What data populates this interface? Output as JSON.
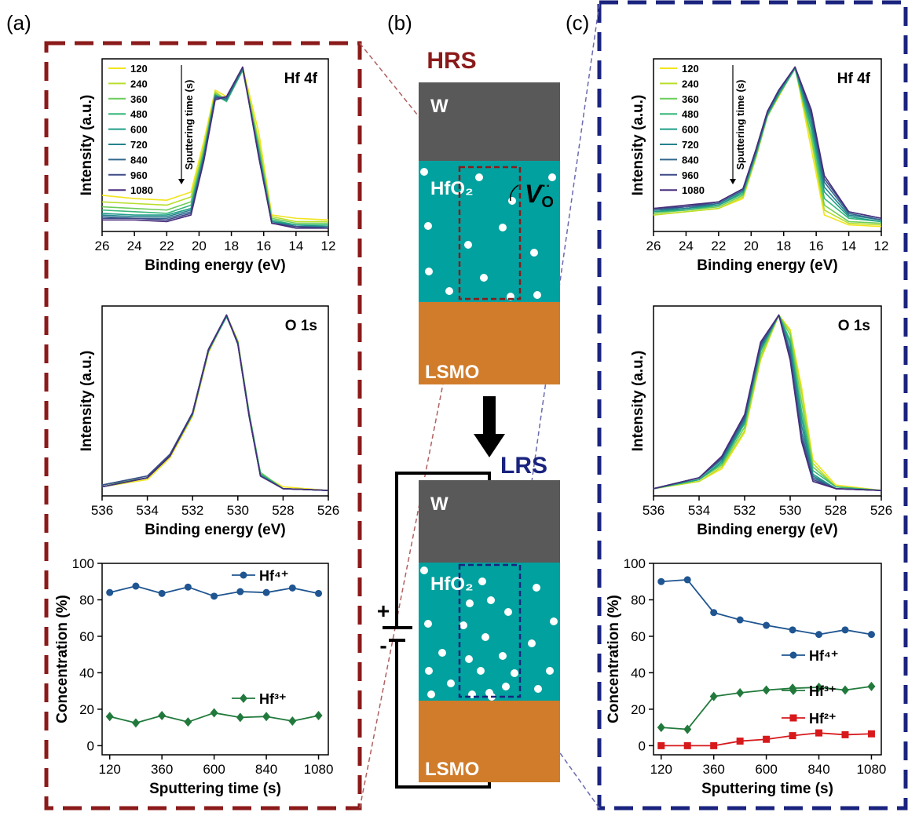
{
  "diagram": {
    "panel_labels": [
      "(a)",
      "(b)",
      "(c)"
    ],
    "hrs": "HRS",
    "lrs": "LRS",
    "layers": [
      "W",
      "HfO₂",
      "LSMO"
    ],
    "vacancy": {
      "symbol": "V",
      "subscript": "O",
      "superscript": "··"
    },
    "plus": "+",
    "minus": "-"
  },
  "chart_data": [
    {
      "type": "line",
      "title": "Hf 4f",
      "xlabel": "Binding energy (eV)",
      "ylabel": "Intensity (a.u.)",
      "legend_title": "Sputtering time (s)",
      "x": [
        26,
        24,
        22,
        20.5,
        19.7,
        19,
        18.3,
        17.3,
        16.3,
        15.5,
        14,
        12
      ],
      "xlim": [
        26,
        12
      ],
      "xticks": [
        26,
        24,
        22,
        20,
        18,
        16,
        14,
        12
      ],
      "ylim": [
        0,
        1.05
      ],
      "series": [
        {
          "name": "120",
          "color": "#f2e41d",
          "values": [
            0.22,
            0.2,
            0.19,
            0.24,
            0.55,
            0.86,
            0.82,
            1.0,
            0.6,
            0.1,
            0.08,
            0.07
          ]
        },
        {
          "name": "240",
          "color": "#b8de29",
          "values": [
            0.18,
            0.17,
            0.16,
            0.21,
            0.52,
            0.85,
            0.8,
            0.99,
            0.55,
            0.09,
            0.06,
            0.06
          ]
        },
        {
          "name": "360",
          "color": "#6ccd5a",
          "values": [
            0.15,
            0.14,
            0.13,
            0.18,
            0.5,
            0.84,
            0.8,
            0.99,
            0.52,
            0.08,
            0.05,
            0.05
          ]
        },
        {
          "name": "480",
          "color": "#35b779",
          "values": [
            0.13,
            0.12,
            0.11,
            0.16,
            0.48,
            0.83,
            0.79,
            0.98,
            0.5,
            0.07,
            0.04,
            0.04
          ]
        },
        {
          "name": "600",
          "color": "#1f9e89",
          "values": [
            0.11,
            0.1,
            0.1,
            0.14,
            0.47,
            0.83,
            0.8,
            0.99,
            0.48,
            0.06,
            0.04,
            0.03
          ]
        },
        {
          "name": "720",
          "color": "#26828e",
          "values": [
            0.1,
            0.09,
            0.09,
            0.13,
            0.46,
            0.82,
            0.8,
            0.99,
            0.47,
            0.06,
            0.03,
            0.03
          ]
        },
        {
          "name": "840",
          "color": "#31688e",
          "values": [
            0.09,
            0.08,
            0.08,
            0.12,
            0.45,
            0.82,
            0.81,
            1.0,
            0.46,
            0.05,
            0.03,
            0.02
          ]
        },
        {
          "name": "960",
          "color": "#3e4a89",
          "values": [
            0.08,
            0.08,
            0.07,
            0.11,
            0.44,
            0.81,
            0.82,
            1.0,
            0.45,
            0.05,
            0.03,
            0.02
          ]
        },
        {
          "name": "1080",
          "color": "#472d7b",
          "values": [
            0.07,
            0.07,
            0.06,
            0.1,
            0.43,
            0.8,
            0.82,
            1.0,
            0.45,
            0.05,
            0.02,
            0.02
          ]
        }
      ]
    },
    {
      "type": "line",
      "title": "O 1s",
      "xlabel": "Binding energy (eV)",
      "ylabel": "Intensity (a.u.)",
      "x": [
        536,
        534,
        533,
        532,
        531.3,
        530.5,
        530,
        529.5,
        529,
        528,
        526
      ],
      "xlim": [
        536,
        526
      ],
      "xticks": [
        536,
        534,
        532,
        530,
        528,
        526
      ],
      "ylim": [
        0,
        1.05
      ],
      "series": [
        {
          "name": "120",
          "color": "#f2e41d",
          "values": [
            0.05,
            0.09,
            0.21,
            0.44,
            0.79,
            1.0,
            0.86,
            0.46,
            0.12,
            0.05,
            0.03
          ]
        },
        {
          "name": "240",
          "color": "#b8de29",
          "values": [
            0.05,
            0.1,
            0.22,
            0.45,
            0.8,
            1.0,
            0.85,
            0.45,
            0.12,
            0.04,
            0.03
          ]
        },
        {
          "name": "360",
          "color": "#6ccd5a",
          "values": [
            0.06,
            0.1,
            0.22,
            0.45,
            0.8,
            0.99,
            0.85,
            0.46,
            0.13,
            0.04,
            0.03
          ]
        },
        {
          "name": "480",
          "color": "#35b779",
          "values": [
            0.05,
            0.1,
            0.23,
            0.46,
            0.81,
            1.0,
            0.84,
            0.44,
            0.12,
            0.04,
            0.03
          ]
        },
        {
          "name": "600",
          "color": "#1f9e89",
          "values": [
            0.06,
            0.11,
            0.23,
            0.46,
            0.81,
            0.99,
            0.85,
            0.45,
            0.12,
            0.04,
            0.03
          ]
        },
        {
          "name": "720",
          "color": "#26828e",
          "values": [
            0.05,
            0.1,
            0.22,
            0.45,
            0.8,
            1.0,
            0.85,
            0.45,
            0.11,
            0.04,
            0.03
          ]
        },
        {
          "name": "840",
          "color": "#31688e",
          "values": [
            0.05,
            0.1,
            0.22,
            0.46,
            0.81,
            1.0,
            0.84,
            0.44,
            0.11,
            0.04,
            0.03
          ]
        },
        {
          "name": "960",
          "color": "#3e4a89",
          "values": [
            0.06,
            0.11,
            0.23,
            0.46,
            0.81,
            1.0,
            0.84,
            0.44,
            0.11,
            0.04,
            0.03
          ]
        },
        {
          "name": "1080",
          "color": "#472d7b",
          "values": [
            0.05,
            0.1,
            0.22,
            0.46,
            0.81,
            1.0,
            0.84,
            0.44,
            0.11,
            0.04,
            0.03
          ]
        }
      ]
    },
    {
      "type": "line",
      "xlabel": "Sputtering time (s)",
      "ylabel": "Concentration (%)",
      "x": [
        120,
        240,
        360,
        480,
        600,
        720,
        840,
        960,
        1080
      ],
      "xlim": [
        85,
        1125
      ],
      "xticks": [
        120,
        360,
        600,
        840,
        1080
      ],
      "ylim": [
        -5,
        100
      ],
      "yticks": [
        0,
        20,
        40,
        60,
        80,
        100
      ],
      "series": [
        {
          "name": "Hf⁴⁺",
          "color": "#1f5591",
          "marker": "circle",
          "values": [
            84,
            87.5,
            83.5,
            87,
            82,
            84.5,
            84,
            86.5,
            83.5
          ]
        },
        {
          "name": "Hf³⁺",
          "color": "#217a3c",
          "marker": "diamond",
          "values": [
            16,
            12.5,
            16.5,
            13,
            18,
            15.5,
            16,
            13.5,
            16.5
          ]
        }
      ]
    },
    {
      "type": "line",
      "title": "Hf 4f",
      "xlabel": "Binding energy (eV)",
      "ylabel": "Intensity (a.u.)",
      "legend_title": "Sputtering time (s)",
      "x": [
        26,
        24,
        22,
        20.5,
        19.7,
        19,
        18.3,
        17.3,
        16.3,
        15.5,
        14,
        12
      ],
      "xlim": [
        26,
        12
      ],
      "xticks": [
        26,
        24,
        22,
        20,
        18,
        16,
        14,
        12
      ],
      "ylim": [
        0,
        1.05
      ],
      "series": [
        {
          "name": "120",
          "color": "#f2e41d",
          "values": [
            0.1,
            0.12,
            0.14,
            0.2,
            0.45,
            0.7,
            0.82,
            1.0,
            0.5,
            0.1,
            0.04,
            0.03
          ]
        },
        {
          "name": "240",
          "color": "#b8de29",
          "values": [
            0.1,
            0.12,
            0.14,
            0.21,
            0.45,
            0.7,
            0.83,
            1.0,
            0.55,
            0.13,
            0.05,
            0.04
          ]
        },
        {
          "name": "360",
          "color": "#6ccd5a",
          "values": [
            0.11,
            0.13,
            0.15,
            0.22,
            0.46,
            0.7,
            0.83,
            0.99,
            0.58,
            0.16,
            0.06,
            0.05
          ]
        },
        {
          "name": "480",
          "color": "#35b779",
          "values": [
            0.12,
            0.13,
            0.16,
            0.23,
            0.47,
            0.71,
            0.83,
            0.99,
            0.62,
            0.2,
            0.08,
            0.06
          ]
        },
        {
          "name": "600",
          "color": "#1f9e89",
          "values": [
            0.12,
            0.14,
            0.16,
            0.24,
            0.48,
            0.71,
            0.84,
            1.0,
            0.65,
            0.24,
            0.09,
            0.06
          ]
        },
        {
          "name": "720",
          "color": "#26828e",
          "values": [
            0.13,
            0.14,
            0.17,
            0.25,
            0.48,
            0.72,
            0.85,
            1.0,
            0.68,
            0.27,
            0.1,
            0.07
          ]
        },
        {
          "name": "840",
          "color": "#31688e",
          "values": [
            0.13,
            0.15,
            0.17,
            0.25,
            0.49,
            0.72,
            0.85,
            1.0,
            0.7,
            0.3,
            0.11,
            0.07
          ]
        },
        {
          "name": "960",
          "color": "#3e4a89",
          "values": [
            0.14,
            0.15,
            0.18,
            0.26,
            0.5,
            0.73,
            0.86,
            1.0,
            0.72,
            0.32,
            0.12,
            0.08
          ]
        },
        {
          "name": "1080",
          "color": "#472d7b",
          "values": [
            0.14,
            0.16,
            0.18,
            0.26,
            0.5,
            0.73,
            0.86,
            1.0,
            0.74,
            0.34,
            0.12,
            0.08
          ]
        }
      ]
    },
    {
      "type": "line",
      "title": "O 1s",
      "xlabel": "Binding energy (eV)",
      "ylabel": "Intensity (a.u.)",
      "x": [
        536,
        534,
        533,
        532,
        531.3,
        530.5,
        530,
        529.5,
        529,
        528,
        526
      ],
      "xlim": [
        536,
        526
      ],
      "xticks": [
        536,
        534,
        532,
        530,
        528,
        526
      ],
      "ylim": [
        0,
        1.05
      ],
      "series": [
        {
          "name": "120",
          "color": "#f2e41d",
          "values": [
            0.04,
            0.08,
            0.15,
            0.35,
            0.75,
            1.0,
            0.92,
            0.6,
            0.2,
            0.06,
            0.03
          ]
        },
        {
          "name": "240",
          "color": "#b8de29",
          "values": [
            0.04,
            0.08,
            0.16,
            0.36,
            0.76,
            1.0,
            0.91,
            0.57,
            0.18,
            0.05,
            0.03
          ]
        },
        {
          "name": "360",
          "color": "#6ccd5a",
          "values": [
            0.04,
            0.09,
            0.17,
            0.38,
            0.78,
            1.0,
            0.89,
            0.52,
            0.16,
            0.05,
            0.03
          ]
        },
        {
          "name": "480",
          "color": "#35b779",
          "values": [
            0.04,
            0.09,
            0.18,
            0.4,
            0.8,
            1.0,
            0.86,
            0.47,
            0.14,
            0.05,
            0.03
          ]
        },
        {
          "name": "600",
          "color": "#1f9e89",
          "values": [
            0.04,
            0.09,
            0.19,
            0.41,
            0.81,
            1.0,
            0.84,
            0.43,
            0.12,
            0.04,
            0.03
          ]
        },
        {
          "name": "720",
          "color": "#26828e",
          "values": [
            0.04,
            0.1,
            0.2,
            0.42,
            0.82,
            1.0,
            0.81,
            0.39,
            0.11,
            0.04,
            0.03
          ]
        },
        {
          "name": "840",
          "color": "#31688e",
          "values": [
            0.04,
            0.1,
            0.21,
            0.43,
            0.83,
            1.0,
            0.79,
            0.35,
            0.1,
            0.04,
            0.03
          ]
        },
        {
          "name": "960",
          "color": "#3e4a89",
          "values": [
            0.04,
            0.1,
            0.21,
            0.44,
            0.84,
            1.0,
            0.77,
            0.32,
            0.09,
            0.04,
            0.03
          ]
        },
        {
          "name": "1080",
          "color": "#472d7b",
          "values": [
            0.04,
            0.1,
            0.22,
            0.45,
            0.85,
            1.0,
            0.75,
            0.3,
            0.08,
            0.04,
            0.03
          ]
        }
      ]
    },
    {
      "type": "line",
      "xlabel": "Sputtering time (s)",
      "ylabel": "Concentration (%)",
      "x": [
        120,
        240,
        360,
        480,
        600,
        720,
        840,
        960,
        1080
      ],
      "xlim": [
        85,
        1125
      ],
      "xticks": [
        120,
        360,
        600,
        840,
        1080
      ],
      "ylim": [
        -5,
        100
      ],
      "yticks": [
        0,
        20,
        40,
        60,
        80,
        100
      ],
      "series": [
        {
          "name": "Hf⁴⁺",
          "color": "#1f5591",
          "marker": "circle",
          "values": [
            90,
            91,
            73,
            69,
            66,
            63.5,
            61,
            63.5,
            61
          ]
        },
        {
          "name": "Hf³⁺",
          "color": "#217a3c",
          "marker": "diamond",
          "values": [
            10,
            9,
            27,
            29,
            30.5,
            31.5,
            32,
            30.5,
            32.5
          ]
        },
        {
          "name": "Hf²⁺",
          "color": "#d7191c",
          "marker": "square",
          "values": [
            0,
            0,
            0,
            2.5,
            3.5,
            5.5,
            7,
            6,
            6.5
          ]
        }
      ]
    }
  ]
}
